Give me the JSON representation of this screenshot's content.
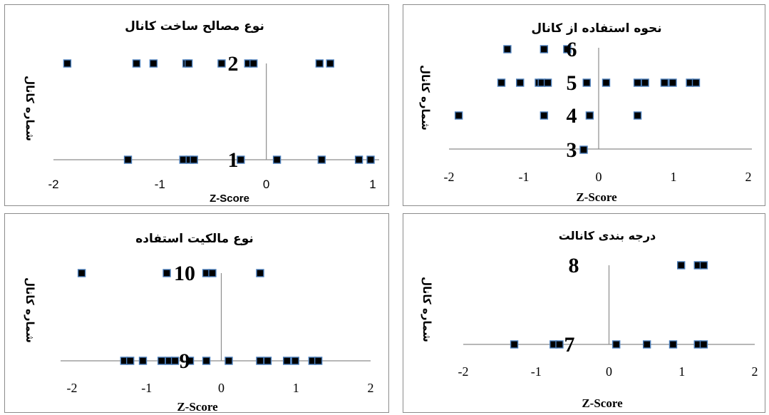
{
  "chart_data": [
    {
      "type": "scatter",
      "title": "نوع مصالح ساخت کانال",
      "xlabel": "Z-Score",
      "ylabel": "شماره کانال",
      "xlim": [
        -2,
        1
      ],
      "xticks": [
        "-2",
        "-1",
        "0",
        "1"
      ],
      "categories": [
        "1",
        "2"
      ],
      "series": [
        {
          "category": "2",
          "x": [
            -1.87,
            -1.22,
            -1.06,
            -0.75,
            -0.73,
            -0.42,
            -0.17,
            -0.12,
            0.5,
            0.6
          ]
        },
        {
          "category": "1",
          "x": [
            -1.3,
            -0.78,
            -0.72,
            -0.68,
            -0.24,
            0.1,
            0.52,
            0.87,
            0.98
          ]
        }
      ]
    },
    {
      "type": "scatter",
      "title": "نحوه استفاده از کانال",
      "xlabel": "Z-Score",
      "ylabel": "شماره کانال",
      "xlim": [
        -2,
        2
      ],
      "xticks": [
        "-2",
        "-1",
        "0",
        "1",
        "2"
      ],
      "categories": [
        "3",
        "4",
        "5",
        "6"
      ],
      "series": [
        {
          "category": "6",
          "x": [
            -1.22,
            -0.73,
            -0.42
          ]
        },
        {
          "category": "5",
          "x": [
            -1.3,
            -1.05,
            -0.8,
            -0.76,
            -0.68,
            -0.16,
            0.1,
            0.52,
            0.62,
            0.88,
            0.99,
            1.22,
            1.3
          ]
        },
        {
          "category": "4",
          "x": [
            -1.87,
            -0.73,
            -0.12,
            0.52
          ]
        },
        {
          "category": "3",
          "x": [
            -0.2
          ]
        }
      ]
    },
    {
      "type": "scatter",
      "title": "نوع مالکیت استفاده",
      "xlabel": "Z-Score",
      "ylabel": "شماره کانال",
      "xlim": [
        -2,
        2
      ],
      "xticks": [
        "-2",
        "-1",
        "0",
        "1",
        "2"
      ],
      "categories": [
        "9",
        "10"
      ],
      "series": [
        {
          "category": "10",
          "x": [
            -1.87,
            -0.73,
            -0.2,
            -0.12,
            0.52
          ]
        },
        {
          "category": "9",
          "x": [
            -1.3,
            -1.22,
            -1.05,
            -0.8,
            -0.7,
            -0.62,
            -0.42,
            -0.2,
            0.1,
            0.52,
            0.62,
            0.88,
            0.99,
            1.22,
            1.3
          ]
        }
      ]
    },
    {
      "type": "scatter",
      "title": "درجه بندی کانالت",
      "xlabel": "Z-Score",
      "ylabel": "شماره کانال",
      "xlim": [
        -2,
        2
      ],
      "xticks": [
        "-2",
        "-1",
        "0",
        "1",
        "2"
      ],
      "categories": [
        "7",
        "8"
      ],
      "series": [
        {
          "category": "8",
          "x": [
            0.99,
            1.22,
            1.3
          ]
        },
        {
          "category": "7",
          "x": [
            -1.3,
            -0.76,
            -0.68,
            0.1,
            0.52,
            0.88,
            1.22,
            1.3
          ]
        }
      ]
    }
  ]
}
